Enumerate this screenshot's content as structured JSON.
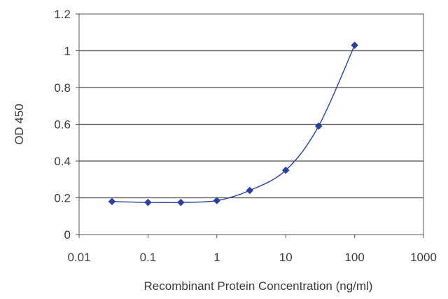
{
  "chart_data": {
    "type": "line",
    "title": "",
    "xlabel": "Recombinant Protein Concentration (ng/ml)",
    "ylabel": "OD 450",
    "x_scale": "log",
    "xlim": [
      0.01,
      1000
    ],
    "ylim": [
      0,
      1.2
    ],
    "x_ticks": [
      "0.01",
      "0.1",
      "1",
      "10",
      "100",
      "1000"
    ],
    "y_ticks": [
      "0",
      "0.2",
      "0.4",
      "0.6",
      "0.8",
      "1",
      "1.2"
    ],
    "grid": true,
    "legend": "none",
    "series": [
      {
        "x": [
          0.03,
          0.1,
          0.3,
          1,
          3,
          10,
          30,
          100
        ],
        "y": [
          0.18,
          0.175,
          0.175,
          0.185,
          0.24,
          0.35,
          0.59,
          1.03
        ],
        "color": "#2b3fa0",
        "marker": "diamond"
      }
    ]
  }
}
